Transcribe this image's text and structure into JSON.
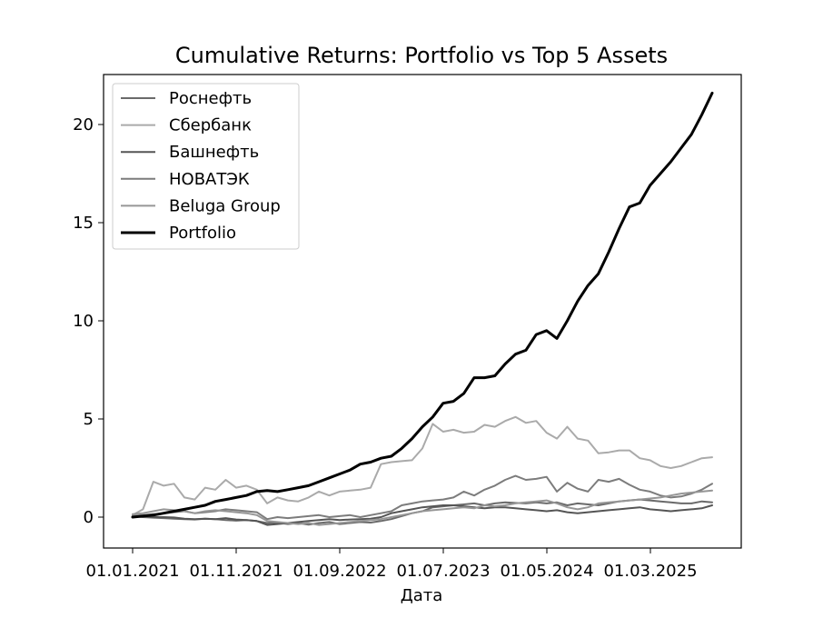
{
  "chart_data": {
    "type": "line",
    "title": "Cumulative Returns: Portfolio vs Top 5 Assets",
    "xlabel": "Дата",
    "ylabel": "",
    "x_start": "2021-01",
    "x_end": "2025-09",
    "x_ticks": [
      "01.01.2021",
      "01.11.2021",
      "01.09.2022",
      "01.07.2023",
      "01.05.2024",
      "01.03.2025"
    ],
    "y_ticks": [
      "0",
      "5",
      "10",
      "15",
      "20"
    ],
    "ylim": [
      -1.6,
      22.6
    ],
    "grid": false,
    "legend_position": "upper-left",
    "series": [
      {
        "name": "Роснефть",
        "color": "#6a6a6a",
        "width": 2,
        "values": [
          0.05,
          0.0,
          -0.03,
          -0.05,
          -0.08,
          -0.1,
          -0.12,
          -0.08,
          -0.1,
          -0.15,
          -0.18,
          -0.15,
          -0.2,
          -0.3,
          -0.28,
          -0.35,
          -0.3,
          -0.38,
          -0.3,
          -0.25,
          -0.35,
          -0.3,
          -0.25,
          -0.28,
          -0.2,
          -0.1,
          0.05,
          0.2,
          0.3,
          0.5,
          0.55,
          0.6,
          0.65,
          0.7,
          0.6,
          0.7,
          0.75,
          0.72,
          0.7,
          0.75,
          0.7,
          0.75,
          0.6,
          0.7,
          0.65,
          0.6,
          0.7,
          0.8,
          0.85,
          0.9,
          0.85,
          0.8,
          0.75,
          0.7,
          0.7,
          0.8,
          0.75
        ]
      },
      {
        "name": "Сбербанк",
        "color": "#aaaaaa",
        "width": 2,
        "values": [
          0.1,
          0.4,
          1.8,
          1.6,
          1.7,
          1.0,
          0.9,
          1.5,
          1.4,
          1.9,
          1.5,
          1.6,
          1.4,
          0.7,
          1.0,
          0.85,
          0.8,
          1.0,
          1.3,
          1.1,
          1.3,
          1.35,
          1.4,
          1.5,
          2.7,
          2.8,
          2.85,
          2.9,
          3.5,
          4.75,
          4.35,
          4.45,
          4.3,
          4.35,
          4.7,
          4.6,
          4.9,
          5.1,
          4.8,
          4.9,
          4.3,
          4.0,
          4.6,
          4.0,
          3.9,
          3.25,
          3.3,
          3.4,
          3.4,
          3.0,
          2.9,
          2.6,
          2.5,
          2.6,
          2.8,
          3.0,
          3.05
        ]
      },
      {
        "name": "Башнефть",
        "color": "#555555",
        "width": 2,
        "values": [
          0.0,
          0.05,
          0.0,
          0.0,
          -0.02,
          -0.08,
          -0.1,
          -0.08,
          -0.1,
          -0.05,
          -0.12,
          -0.15,
          -0.2,
          -0.4,
          -0.35,
          -0.3,
          -0.25,
          -0.2,
          -0.15,
          -0.1,
          -0.15,
          -0.12,
          -0.1,
          -0.08,
          0.0,
          0.2,
          0.3,
          0.4,
          0.5,
          0.55,
          0.6,
          0.6,
          0.55,
          0.5,
          0.45,
          0.5,
          0.5,
          0.45,
          0.4,
          0.35,
          0.3,
          0.35,
          0.25,
          0.2,
          0.25,
          0.3,
          0.35,
          0.4,
          0.45,
          0.5,
          0.4,
          0.35,
          0.3,
          0.35,
          0.4,
          0.45,
          0.6
        ]
      },
      {
        "name": "НОВАТЭК",
        "color": "#7c7c7c",
        "width": 2,
        "values": [
          0.05,
          0.1,
          0.15,
          0.2,
          0.25,
          0.3,
          0.2,
          0.25,
          0.3,
          0.4,
          0.35,
          0.3,
          0.25,
          -0.1,
          0.0,
          -0.05,
          0.0,
          0.05,
          0.1,
          0.0,
          0.05,
          0.1,
          0.0,
          0.1,
          0.2,
          0.3,
          0.6,
          0.7,
          0.8,
          0.85,
          0.9,
          1.0,
          1.3,
          1.1,
          1.4,
          1.6,
          1.9,
          2.1,
          1.9,
          1.95,
          2.05,
          1.3,
          1.75,
          1.45,
          1.3,
          1.9,
          1.8,
          1.95,
          1.65,
          1.4,
          1.3,
          1.1,
          1.0,
          1.05,
          1.2,
          1.4,
          1.7
        ]
      },
      {
        "name": "Beluga Group",
        "color": "#969696",
        "width": 2,
        "values": [
          0.15,
          0.2,
          0.3,
          0.4,
          0.35,
          0.3,
          0.2,
          0.3,
          0.35,
          0.3,
          0.25,
          0.2,
          0.1,
          -0.2,
          -0.25,
          -0.3,
          -0.35,
          -0.3,
          -0.4,
          -0.35,
          -0.3,
          -0.25,
          -0.2,
          -0.15,
          -0.1,
          0.0,
          0.1,
          0.2,
          0.3,
          0.35,
          0.4,
          0.45,
          0.5,
          0.45,
          0.6,
          0.55,
          0.6,
          0.7,
          0.75,
          0.8,
          0.85,
          0.7,
          0.5,
          0.4,
          0.5,
          0.7,
          0.75,
          0.8,
          0.85,
          0.9,
          0.95,
          1.0,
          1.1,
          1.2,
          1.25,
          1.3,
          1.35
        ]
      },
      {
        "name": "Portfolio",
        "color": "#000000",
        "width": 3,
        "values": [
          0.0,
          0.05,
          0.1,
          0.2,
          0.3,
          0.4,
          0.5,
          0.6,
          0.8,
          0.9,
          1.0,
          1.1,
          1.3,
          1.35,
          1.3,
          1.4,
          1.5,
          1.6,
          1.8,
          2.0,
          2.2,
          2.4,
          2.7,
          2.8,
          3.0,
          3.1,
          3.5,
          4.0,
          4.6,
          5.1,
          5.8,
          5.9,
          6.3,
          7.1,
          7.1,
          7.2,
          7.8,
          8.3,
          8.5,
          9.3,
          9.5,
          9.1,
          10.0,
          11.0,
          11.8,
          12.4,
          13.5,
          14.7,
          15.8,
          16.0,
          16.9,
          17.5,
          18.1,
          18.8,
          19.5,
          20.5,
          21.6
        ]
      }
    ]
  }
}
